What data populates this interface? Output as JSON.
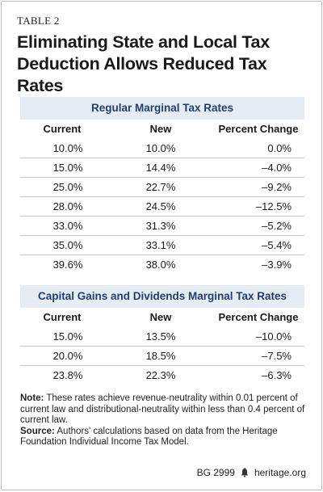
{
  "table_label": "TABLE 2",
  "title": "Eliminating State and Local Tax Deduction Allows Reduced Tax Rates",
  "sections": [
    {
      "heading": "Regular Marginal Tax Rates",
      "columns": [
        "Current",
        "New",
        "Percent Change"
      ],
      "rows": [
        [
          "10.0%",
          "10.0%",
          "0.0%"
        ],
        [
          "15.0%",
          "14.4%",
          "–4.0%"
        ],
        [
          "25.0%",
          "22.7%",
          "–9.2%"
        ],
        [
          "28.0%",
          "24.5%",
          "–12.5%"
        ],
        [
          "33.0%",
          "31.3%",
          "–5.2%"
        ],
        [
          "35.0%",
          "33.1%",
          "–5.4%"
        ],
        [
          "39.6%",
          "38.0%",
          "–3.9%"
        ]
      ]
    },
    {
      "heading": "Capital Gains and Dividends Marginal Tax Rates",
      "columns": [
        "Current",
        "New",
        "Percent Change"
      ],
      "rows": [
        [
          "15.0%",
          "13.5%",
          "–10.0%"
        ],
        [
          "20.0%",
          "18.5%",
          "–7.5%"
        ],
        [
          "23.8%",
          "22.3%",
          "–6.3%"
        ]
      ]
    }
  ],
  "note_label": "Note:",
  "note_text": "These rates achieve revenue-neutrality within 0.01 percent of current law and distributional-neutrality within less than 0.4 percent of current law.",
  "source_label": "Source:",
  "source_text": "Authors' calculations based on data from the Heritage Foundation Individual Income Tax Model.",
  "footer": {
    "report_id": "BG 2999",
    "site": "heritage.org",
    "icon": "liberty-bell-icon"
  }
}
